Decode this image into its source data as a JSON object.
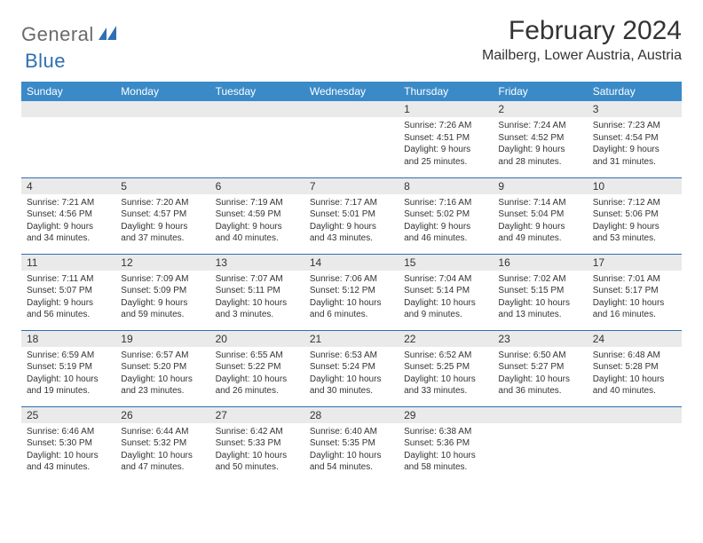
{
  "logo": {
    "part1": "General",
    "part2": "Blue"
  },
  "title": "February 2024",
  "location": "Mailberg, Lower Austria, Austria",
  "colors": {
    "header_bg": "#3a8ac8",
    "header_text": "#ffffff",
    "daynum_bg": "#eaeaea",
    "border": "#2f6fb3",
    "logo_gray": "#6a6a6a",
    "logo_blue": "#2f6fb3",
    "text": "#333333",
    "background": "#ffffff"
  },
  "typography": {
    "title_fontsize": 30,
    "location_fontsize": 16,
    "weekday_fontsize": 12,
    "daynum_fontsize": 12,
    "body_fontsize": 10
  },
  "weekdays": [
    "Sunday",
    "Monday",
    "Tuesday",
    "Wednesday",
    "Thursday",
    "Friday",
    "Saturday"
  ],
  "weeks": [
    [
      null,
      null,
      null,
      null,
      {
        "n": "1",
        "sunrise": "7:26 AM",
        "sunset": "4:51 PM",
        "daylight": "9 hours and 25 minutes."
      },
      {
        "n": "2",
        "sunrise": "7:24 AM",
        "sunset": "4:52 PM",
        "daylight": "9 hours and 28 minutes."
      },
      {
        "n": "3",
        "sunrise": "7:23 AM",
        "sunset": "4:54 PM",
        "daylight": "9 hours and 31 minutes."
      }
    ],
    [
      {
        "n": "4",
        "sunrise": "7:21 AM",
        "sunset": "4:56 PM",
        "daylight": "9 hours and 34 minutes."
      },
      {
        "n": "5",
        "sunrise": "7:20 AM",
        "sunset": "4:57 PM",
        "daylight": "9 hours and 37 minutes."
      },
      {
        "n": "6",
        "sunrise": "7:19 AM",
        "sunset": "4:59 PM",
        "daylight": "9 hours and 40 minutes."
      },
      {
        "n": "7",
        "sunrise": "7:17 AM",
        "sunset": "5:01 PM",
        "daylight": "9 hours and 43 minutes."
      },
      {
        "n": "8",
        "sunrise": "7:16 AM",
        "sunset": "5:02 PM",
        "daylight": "9 hours and 46 minutes."
      },
      {
        "n": "9",
        "sunrise": "7:14 AM",
        "sunset": "5:04 PM",
        "daylight": "9 hours and 49 minutes."
      },
      {
        "n": "10",
        "sunrise": "7:12 AM",
        "sunset": "5:06 PM",
        "daylight": "9 hours and 53 minutes."
      }
    ],
    [
      {
        "n": "11",
        "sunrise": "7:11 AM",
        "sunset": "5:07 PM",
        "daylight": "9 hours and 56 minutes."
      },
      {
        "n": "12",
        "sunrise": "7:09 AM",
        "sunset": "5:09 PM",
        "daylight": "9 hours and 59 minutes."
      },
      {
        "n": "13",
        "sunrise": "7:07 AM",
        "sunset": "5:11 PM",
        "daylight": "10 hours and 3 minutes."
      },
      {
        "n": "14",
        "sunrise": "7:06 AM",
        "sunset": "5:12 PM",
        "daylight": "10 hours and 6 minutes."
      },
      {
        "n": "15",
        "sunrise": "7:04 AM",
        "sunset": "5:14 PM",
        "daylight": "10 hours and 9 minutes."
      },
      {
        "n": "16",
        "sunrise": "7:02 AM",
        "sunset": "5:15 PM",
        "daylight": "10 hours and 13 minutes."
      },
      {
        "n": "17",
        "sunrise": "7:01 AM",
        "sunset": "5:17 PM",
        "daylight": "10 hours and 16 minutes."
      }
    ],
    [
      {
        "n": "18",
        "sunrise": "6:59 AM",
        "sunset": "5:19 PM",
        "daylight": "10 hours and 19 minutes."
      },
      {
        "n": "19",
        "sunrise": "6:57 AM",
        "sunset": "5:20 PM",
        "daylight": "10 hours and 23 minutes."
      },
      {
        "n": "20",
        "sunrise": "6:55 AM",
        "sunset": "5:22 PM",
        "daylight": "10 hours and 26 minutes."
      },
      {
        "n": "21",
        "sunrise": "6:53 AM",
        "sunset": "5:24 PM",
        "daylight": "10 hours and 30 minutes."
      },
      {
        "n": "22",
        "sunrise": "6:52 AM",
        "sunset": "5:25 PM",
        "daylight": "10 hours and 33 minutes."
      },
      {
        "n": "23",
        "sunrise": "6:50 AM",
        "sunset": "5:27 PM",
        "daylight": "10 hours and 36 minutes."
      },
      {
        "n": "24",
        "sunrise": "6:48 AM",
        "sunset": "5:28 PM",
        "daylight": "10 hours and 40 minutes."
      }
    ],
    [
      {
        "n": "25",
        "sunrise": "6:46 AM",
        "sunset": "5:30 PM",
        "daylight": "10 hours and 43 minutes."
      },
      {
        "n": "26",
        "sunrise": "6:44 AM",
        "sunset": "5:32 PM",
        "daylight": "10 hours and 47 minutes."
      },
      {
        "n": "27",
        "sunrise": "6:42 AM",
        "sunset": "5:33 PM",
        "daylight": "10 hours and 50 minutes."
      },
      {
        "n": "28",
        "sunrise": "6:40 AM",
        "sunset": "5:35 PM",
        "daylight": "10 hours and 54 minutes."
      },
      {
        "n": "29",
        "sunrise": "6:38 AM",
        "sunset": "5:36 PM",
        "daylight": "10 hours and 58 minutes."
      },
      null,
      null
    ]
  ],
  "labels": {
    "sunrise": "Sunrise:",
    "sunset": "Sunset:",
    "daylight": "Daylight:"
  }
}
